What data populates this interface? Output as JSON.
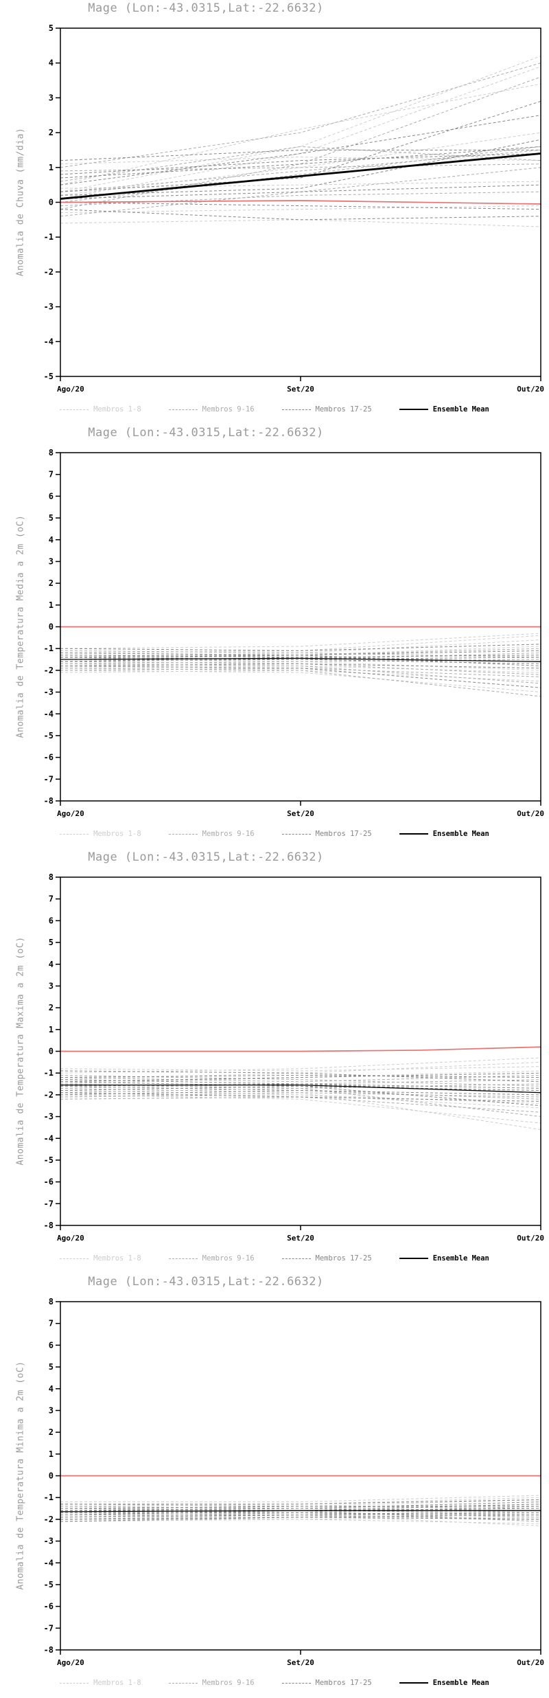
{
  "page_bg": "#ffffff",
  "zero_line_color": "#e87272",
  "frame_color": "#000000",
  "title_color": "#9a9a9a",
  "legend": {
    "items": [
      {
        "label": "Membros 1-8",
        "color": "#cdcdcd",
        "style": "dashed"
      },
      {
        "label": "Membros 9-16",
        "color": "#ababab",
        "style": "dashed"
      },
      {
        "label": "Membros 17-25",
        "color": "#858585",
        "style": "dashed"
      },
      {
        "label": "Ensemble Mean",
        "color": "#000000",
        "style": "solid"
      }
    ]
  },
  "chart_data": [
    {
      "type": "line",
      "title": "Mage (Lon:-43.0315,Lat:-22.6632)",
      "ylabel": "Anomalia de Chuva (mm/dia)",
      "ylim": [
        -5,
        5
      ],
      "ytick_step": 1,
      "x_labels": [
        "Ago/20",
        "Set/20",
        "Out/20"
      ],
      "zero_line": [
        0,
        0.05,
        -0.05
      ],
      "ensemble_mean": [
        0.1,
        0.75,
        1.4
      ],
      "mean_line_width": 2.8,
      "members": [
        [
          0.3,
          1.6,
          4.2
        ],
        [
          -0.3,
          -0.2,
          -0.1
        ],
        [
          0.2,
          1.0,
          2.0
        ],
        [
          1.1,
          1.3,
          1.2
        ],
        [
          0.1,
          1.4,
          3.9
        ],
        [
          -0.6,
          -0.5,
          -0.7
        ],
        [
          0.5,
          2.1,
          3.4
        ],
        [
          0.4,
          0.5,
          0.6
        ],
        [
          -0.2,
          1.1,
          3.6
        ],
        [
          0.0,
          0.8,
          1.6
        ],
        [
          0.9,
          1.0,
          1.1
        ],
        [
          0.6,
          1.6,
          1.2
        ],
        [
          1.0,
          2.0,
          4.0
        ],
        [
          -0.1,
          0.2,
          0.3
        ],
        [
          0.3,
          0.9,
          1.5
        ],
        [
          -0.4,
          0.3,
          1.0
        ],
        [
          0.5,
          1.4,
          2.5
        ],
        [
          0.8,
          1.2,
          1.4
        ],
        [
          -0.2,
          -0.5,
          -0.4
        ],
        [
          0.2,
          0.4,
          1.8
        ],
        [
          0.7,
          1.1,
          1.6
        ],
        [
          1.2,
          1.5,
          1.5
        ],
        [
          0.1,
          0.3,
          0.5
        ],
        [
          0.0,
          -0.1,
          -0.2
        ],
        [
          0.3,
          0.7,
          2.9
        ]
      ]
    },
    {
      "type": "line",
      "title": "Mage (Lon:-43.0315,Lat:-22.6632)",
      "ylabel": "Anomalia de Temperatura Media a 2m (oC)",
      "ylim": [
        -8,
        8
      ],
      "ytick_step": 1,
      "x_labels": [
        "Ago/20",
        "Set/20",
        "Out/20"
      ],
      "zero_line": [
        0,
        0,
        0
      ],
      "ensemble_mean": [
        -1.5,
        -1.45,
        -1.6
      ],
      "mean_line_width": 1.3,
      "members": [
        [
          -1.2,
          -1.1,
          -0.4
        ],
        [
          -1.9,
          -1.8,
          -2.1
        ],
        [
          -1.4,
          -1.2,
          -0.6
        ],
        [
          -2.0,
          -2.1,
          -3.0
        ],
        [
          -1.0,
          -0.9,
          -0.3
        ],
        [
          -1.5,
          -1.6,
          -2.0
        ],
        [
          -1.3,
          -1.3,
          -0.9
        ],
        [
          -2.1,
          -2.0,
          -2.5
        ],
        [
          -1.5,
          -1.3,
          -1.0
        ],
        [
          -1.7,
          -1.8,
          -2.6
        ],
        [
          -1.6,
          -1.5,
          -1.2
        ],
        [
          -1.9,
          -2.0,
          -3.2
        ],
        [
          -1.1,
          -1.2,
          -1.4
        ],
        [
          -2.0,
          -1.9,
          -2.3
        ],
        [
          -1.7,
          -1.6,
          -1.5
        ],
        [
          -1.6,
          -1.7,
          -2.2
        ],
        [
          -1.8,
          -1.7,
          -1.9
        ],
        [
          -1.3,
          -1.4,
          -1.6
        ],
        [
          -1.4,
          -1.5,
          -1.7
        ],
        [
          -1.0,
          -1.1,
          -0.8
        ],
        [
          -1.8,
          -1.9,
          -2.8
        ],
        [
          -1.6,
          -1.4,
          -1.3
        ],
        [
          -1.2,
          -1.3,
          -1.1
        ],
        [
          -1.4,
          -1.3,
          -1.8
        ],
        [
          -1.5,
          -1.5,
          -1.4
        ]
      ]
    },
    {
      "type": "line",
      "title": "Mage (Lon:-43.0315,Lat:-22.6632)",
      "ylabel": "Anomalia de Temperatura Maxima a 2m (oC)",
      "ylim": [
        -8,
        8
      ],
      "ytick_step": 1,
      "x_labels": [
        "Ago/20",
        "Set/20",
        "Out/20"
      ],
      "zero_line": [
        0,
        0,
        0,
        0.05,
        0.2
      ],
      "ensemble_mean": [
        -1.55,
        -1.55,
        -1.9
      ],
      "mean_line_width": 1.3,
      "members": [
        [
          -1.0,
          -0.8,
          -0.3
        ],
        [
          -2.0,
          -2.2,
          -3.3
        ],
        [
          -1.3,
          -1.0,
          -0.5
        ],
        [
          -1.8,
          -2.0,
          -2.6
        ],
        [
          -0.8,
          -0.9,
          -0.7
        ],
        [
          -2.1,
          -2.0,
          -2.4
        ],
        [
          -1.5,
          -1.2,
          -0.9
        ],
        [
          -1.7,
          -1.9,
          -3.6
        ],
        [
          -1.2,
          -1.4,
          -1.1
        ],
        [
          -2.2,
          -2.1,
          -2.8
        ],
        [
          -1.7,
          -1.5,
          -1.3
        ],
        [
          -1.5,
          -1.7,
          -3.0
        ],
        [
          -1.1,
          -1.3,
          -1.6
        ],
        [
          -1.6,
          -1.8,
          -2.2
        ],
        [
          -1.9,
          -1.7,
          -1.5
        ],
        [
          -2.1,
          -1.9,
          -2.1
        ],
        [
          -1.4,
          -1.6,
          -1.8
        ],
        [
          -1.2,
          -1.1,
          -1.2
        ],
        [
          -2.0,
          -1.8,
          -2.0
        ],
        [
          -0.9,
          -1.0,
          -1.4
        ],
        [
          -1.9,
          -2.1,
          -2.3
        ],
        [
          -1.6,
          -1.5,
          -1.9
        ],
        [
          -1.3,
          -1.5,
          -1.7
        ],
        [
          -1.4,
          -1.2,
          -1.0
        ],
        [
          -1.8,
          -1.6,
          -2.5
        ]
      ]
    },
    {
      "type": "line",
      "title": "Mage (Lon:-43.0315,Lat:-22.6632)",
      "ylabel": "Anomalia de Temperatura Minima a 2m (oC)",
      "ylim": [
        -8,
        8
      ],
      "ytick_step": 1,
      "x_labels": [
        "Ago/20",
        "Set/20",
        "Out/20"
      ],
      "zero_line": [
        0,
        0,
        0
      ],
      "ensemble_mean": [
        -1.65,
        -1.6,
        -1.6
      ],
      "mean_line_width": 1.3,
      "members": [
        [
          -1.4,
          -1.3,
          -1.0
        ],
        [
          -2.1,
          -2.0,
          -1.9
        ],
        [
          -1.6,
          -1.4,
          -1.1
        ],
        [
          -1.8,
          -1.7,
          -2.1
        ],
        [
          -1.2,
          -1.2,
          -0.9
        ],
        [
          -2.0,
          -2.0,
          -2.2
        ],
        [
          -1.5,
          -1.5,
          -1.3
        ],
        [
          -1.7,
          -1.8,
          -2.3
        ],
        [
          -1.9,
          -1.7,
          -1.4
        ],
        [
          -1.6,
          -1.7,
          -1.9
        ],
        [
          -1.3,
          -1.4,
          -1.5
        ],
        [
          -1.8,
          -1.8,
          -2.0
        ],
        [
          -2.0,
          -1.8,
          -1.6
        ],
        [
          -1.5,
          -1.6,
          -2.1
        ],
        [
          -1.7,
          -1.6,
          -1.7
        ],
        [
          -1.4,
          -1.5,
          -1.6
        ],
        [
          -2.1,
          -1.9,
          -1.8
        ],
        [
          -1.3,
          -1.3,
          -1.1
        ],
        [
          -1.9,
          -1.8,
          -1.7
        ],
        [
          -1.5,
          -1.4,
          -1.4
        ],
        [
          -1.6,
          -1.5,
          -1.2
        ],
        [
          -2.0,
          -1.9,
          -2.0
        ],
        [
          -1.7,
          -1.7,
          -1.8
        ],
        [
          -1.6,
          -1.6,
          -1.5
        ],
        [
          -1.8,
          -1.6,
          -1.3
        ]
      ]
    }
  ]
}
